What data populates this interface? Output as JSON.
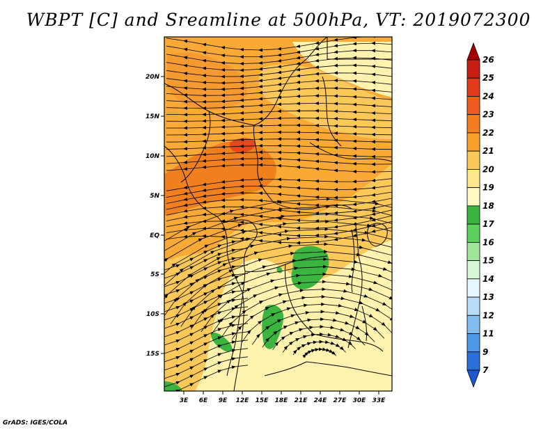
{
  "title": "WBPT [C] and Sreamline at 500hPa, VT: 2019072300",
  "credit": "GrADS: IGES/COLA",
  "map": {
    "lon_range": [
      0,
      35
    ],
    "lat_range": [
      -20,
      24
    ],
    "lat_ticks": [
      "20N",
      "15N",
      "10N",
      "5N",
      "EQ",
      "5S",
      "10S",
      "15S"
    ],
    "lon_ticks": [
      "3E",
      "6E",
      "9E",
      "12E",
      "15E",
      "18E",
      "21E",
      "24E",
      "27E",
      "30E",
      "33E"
    ]
  },
  "colorbar": {
    "labels": [
      "26",
      "25",
      "24",
      "23",
      "22",
      "21",
      "20",
      "19",
      "18",
      "17",
      "16",
      "15",
      "14",
      "13",
      "12",
      "11",
      "9",
      "7"
    ],
    "colors": [
      "#a50000",
      "#c81e14",
      "#e03c1c",
      "#ee5a1e",
      "#f47e1e",
      "#f8a028",
      "#fbc85a",
      "#fde88c",
      "#fff8c0",
      "#3cb440",
      "#5cd05c",
      "#9ee69a",
      "#d6f8d4",
      "#e6f8ff",
      "#b8dcf8",
      "#80bcf0",
      "#4c98e6",
      "#2a70d8",
      "#1a58cc"
    ]
  }
}
